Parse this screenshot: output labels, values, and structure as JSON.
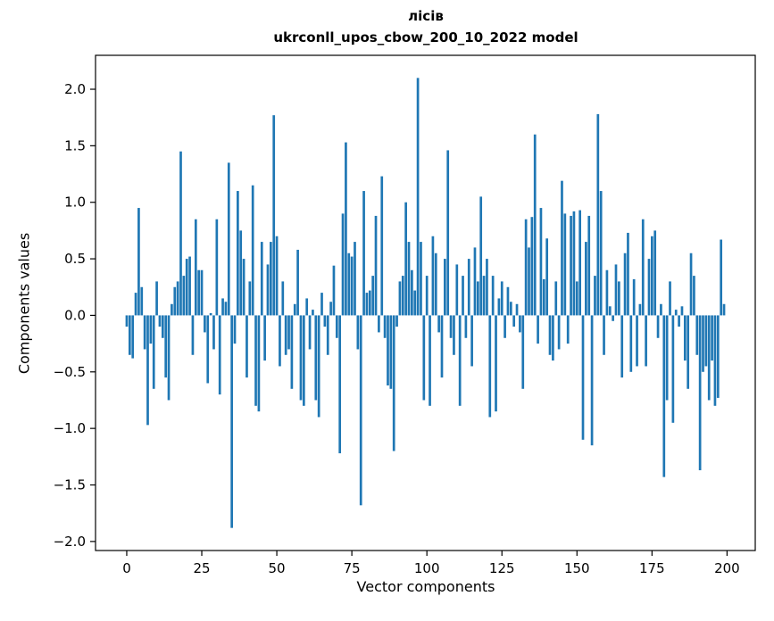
{
  "figure": {
    "title_line1": "лісів",
    "title_line2": "ukrconll_upos_cbow_200_10_2022 model",
    "xlabel": "Vector components",
    "ylabel": "Components values"
  },
  "chart_data": {
    "type": "bar",
    "title": "лісів — ukrconll_upos_cbow_200_10_2022 model",
    "xlabel": "Vector components",
    "ylabel": "Components values",
    "bar_color": "#1f77b4",
    "background": "#ffffff",
    "x_mode": "index",
    "bar_width": 0.8,
    "xlim": [
      -10.4,
      209.4
    ],
    "ylim": [
      -2.08,
      2.3
    ],
    "x_ticks": [
      0,
      25,
      50,
      75,
      100,
      125,
      150,
      175,
      200
    ],
    "y_ticks": [
      -2.0,
      -1.5,
      -1.0,
      -0.5,
      0.0,
      0.5,
      1.0,
      1.5,
      2.0
    ],
    "values": [
      -0.1,
      -0.35,
      -0.38,
      0.2,
      0.95,
      0.25,
      -0.3,
      -0.97,
      -0.25,
      -0.65,
      0.3,
      -0.1,
      -0.2,
      -0.55,
      -0.75,
      0.1,
      0.25,
      0.3,
      1.45,
      0.35,
      0.5,
      0.52,
      -0.35,
      0.85,
      0.4,
      0.4,
      -0.15,
      -0.6,
      0.02,
      -0.3,
      0.85,
      -0.7,
      0.15,
      0.12,
      1.35,
      -1.88,
      -0.25,
      1.1,
      0.75,
      0.5,
      -0.55,
      0.3,
      1.15,
      -0.8,
      -0.85,
      0.65,
      -0.4,
      0.45,
      0.65,
      1.77,
      0.7,
      -0.45,
      0.3,
      -0.35,
      -0.3,
      -0.65,
      0.1,
      0.58,
      -0.75,
      -0.8,
      0.15,
      -0.3,
      0.05,
      -0.75,
      -0.9,
      0.2,
      -0.1,
      -0.35,
      0.12,
      0.44,
      -0.2,
      -1.22,
      0.9,
      1.53,
      0.55,
      0.52,
      0.65,
      -0.3,
      -1.68,
      1.1,
      0.2,
      0.22,
      0.35,
      0.88,
      -0.15,
      1.23,
      -0.2,
      -0.62,
      -0.65,
      -1.2,
      -0.1,
      0.3,
      0.35,
      1.0,
      0.65,
      0.4,
      0.22,
      2.1,
      0.65,
      -0.75,
      0.35,
      -0.8,
      0.7,
      0.55,
      -0.15,
      -0.55,
      0.5,
      1.46,
      -0.2,
      -0.35,
      0.45,
      -0.8,
      0.35,
      -0.2,
      0.5,
      -0.45,
      0.6,
      0.3,
      1.05,
      0.35,
      0.5,
      -0.9,
      0.35,
      -0.85,
      0.15,
      0.3,
      -0.2,
      0.25,
      0.12,
      -0.1,
      0.1,
      -0.15,
      -0.65,
      0.85,
      0.6,
      0.87,
      1.6,
      -0.25,
      0.95,
      0.32,
      0.68,
      -0.35,
      -0.4,
      0.3,
      -0.3,
      1.19,
      0.9,
      -0.25,
      0.88,
      0.92,
      0.3,
      0.93,
      -1.1,
      0.65,
      0.88,
      -1.15,
      0.35,
      1.78,
      1.1,
      -0.35,
      0.4,
      0.08,
      -0.05,
      0.45,
      0.3,
      -0.55,
      0.55,
      0.73,
      -0.5,
      0.32,
      -0.45,
      0.1,
      0.85,
      -0.45,
      0.5,
      0.7,
      0.75,
      -0.2,
      0.1,
      -1.43,
      -0.75,
      0.3,
      -0.95,
      0.05,
      -0.1,
      0.08,
      -0.4,
      -0.65,
      0.55,
      0.35,
      -0.35,
      -1.37,
      -0.5,
      -0.45,
      -0.75,
      -0.4,
      -0.8,
      -0.73,
      0.67,
      0.1
    ]
  }
}
